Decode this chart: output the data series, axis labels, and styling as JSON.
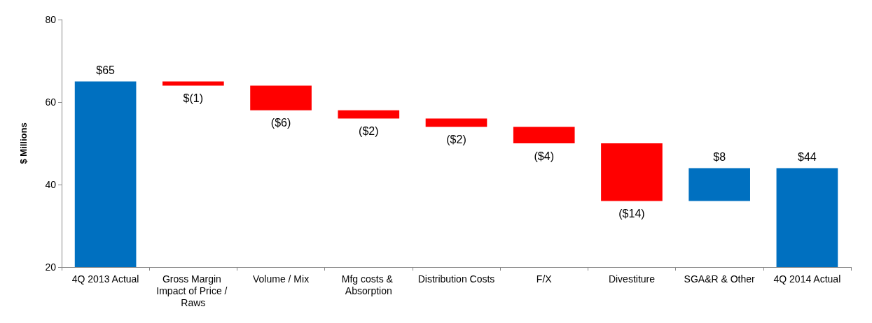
{
  "chart_data": {
    "type": "bar",
    "ylabel": "$ Millions",
    "categories": [
      "4Q 2013 Actual",
      "Gross Margin Impact of Price / Raws",
      "Volume / Mix",
      "Mfg costs & Absorption",
      "Distribution Costs",
      "F/X",
      "Divestiture",
      "SGA&R & Other",
      "4Q 2014 Actual"
    ],
    "base": [
      20,
      65,
      64,
      58,
      56,
      54,
      50,
      36,
      20
    ],
    "values": [
      45,
      -1,
      -6,
      -2,
      -2,
      -4,
      -14,
      8,
      24
    ],
    "value_labels": [
      "$65",
      "$(1)",
      "($6)",
      "($2)",
      "($2)",
      "($4)",
      "($14)",
      "$8",
      "$44"
    ],
    "colors": [
      "#0070c0",
      "#ff0000",
      "#ff0000",
      "#ff0000",
      "#ff0000",
      "#ff0000",
      "#ff0000",
      "#0070c0",
      "#0070c0"
    ],
    "ylim": [
      20,
      80
    ],
    "yticks": [
      20,
      40,
      60,
      80
    ],
    "grid": false
  }
}
